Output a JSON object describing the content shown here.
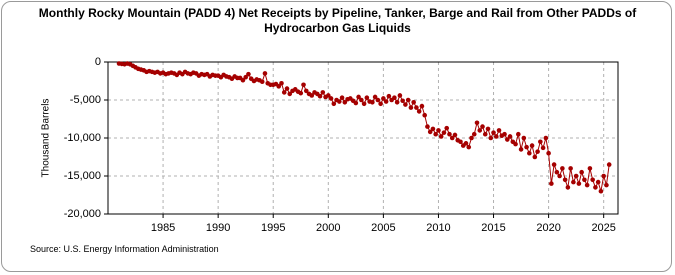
{
  "chart_data": {
    "type": "line",
    "title": "Monthly Rocky Mountain (PADD 4) Net Receipts by Pipeline, Tanker, Barge and Rail from Other PADDs of Hydrocarbon Gas Liquids",
    "y_label": "Thousand Barrels",
    "source": "Source: U.S. Energy Information Administration",
    "xlim": [
      1980,
      2026.3
    ],
    "xticks": [
      1985,
      1990,
      1995,
      2000,
      2005,
      2010,
      2015,
      2020,
      2025
    ],
    "ylim": [
      -20000,
      0
    ],
    "yticks": [
      {
        "value": -20000,
        "label": "-20,000"
      },
      {
        "value": -15000,
        "label": "-15,000"
      },
      {
        "value": -10000,
        "label": "-10,000"
      },
      {
        "value": -5000,
        "label": "-5,000"
      },
      0
    ],
    "grid": true,
    "series": [
      {
        "name": "Net Receipts",
        "color": "#a50000",
        "x": [
          1981,
          1981.25,
          1981.5,
          1981.75,
          1982,
          1982.25,
          1982.5,
          1982.75,
          1983,
          1983.25,
          1983.5,
          1983.75,
          1984,
          1984.25,
          1984.5,
          1984.75,
          1985,
          1985.25,
          1985.5,
          1985.75,
          1986,
          1986.25,
          1986.5,
          1986.75,
          1987,
          1987.25,
          1987.5,
          1987.75,
          1988,
          1988.25,
          1988.5,
          1988.75,
          1989,
          1989.25,
          1989.5,
          1989.75,
          1990,
          1990.25,
          1990.5,
          1990.75,
          1991,
          1991.25,
          1991.5,
          1991.75,
          1992,
          1992.25,
          1992.5,
          1992.75,
          1993,
          1993.25,
          1993.5,
          1993.75,
          1994,
          1994.25,
          1994.5,
          1994.75,
          1995,
          1995.25,
          1995.5,
          1995.75,
          1996,
          1996.25,
          1996.5,
          1996.75,
          1997,
          1997.25,
          1997.5,
          1997.75,
          1998,
          1998.25,
          1998.5,
          1998.75,
          1999,
          1999.25,
          1999.5,
          1999.75,
          2000,
          2000.25,
          2000.5,
          2000.75,
          2001,
          2001.25,
          2001.5,
          2001.75,
          2002,
          2002.25,
          2002.5,
          2002.75,
          2003,
          2003.25,
          2003.5,
          2003.75,
          2004,
          2004.25,
          2004.5,
          2004.75,
          2005,
          2005.25,
          2005.5,
          2005.75,
          2006,
          2006.25,
          2006.5,
          2006.75,
          2007,
          2007.25,
          2007.5,
          2007.75,
          2008,
          2008.25,
          2008.5,
          2008.75,
          2009,
          2009.25,
          2009.5,
          2009.75,
          2010,
          2010.25,
          2010.5,
          2010.75,
          2011,
          2011.25,
          2011.5,
          2011.75,
          2012,
          2012.25,
          2012.5,
          2012.75,
          2013,
          2013.25,
          2013.5,
          2013.75,
          2014,
          2014.25,
          2014.5,
          2014.75,
          2015,
          2015.25,
          2015.5,
          2015.75,
          2016,
          2016.25,
          2016.5,
          2016.75,
          2017,
          2017.25,
          2017.5,
          2017.75,
          2018,
          2018.25,
          2018.5,
          2018.75,
          2019,
          2019.25,
          2019.5,
          2019.75,
          2020,
          2020.25,
          2020.5,
          2020.75,
          2021,
          2021.25,
          2021.5,
          2021.75,
          2022,
          2022.25,
          2022.5,
          2022.75,
          2023,
          2023.25,
          2023.5,
          2023.75,
          2024,
          2024.25,
          2024.5,
          2024.75,
          2025,
          2025.25,
          2025.5
        ],
        "values": [
          -200,
          -250,
          -300,
          -200,
          -300,
          -500,
          -700,
          -900,
          -1000,
          -1100,
          -1300,
          -1200,
          -1300,
          -1400,
          -1300,
          -1500,
          -1400,
          -1600,
          -1500,
          -1400,
          -1500,
          -1700,
          -1400,
          -1600,
          -1300,
          -1500,
          -1600,
          -1400,
          -1500,
          -1800,
          -1600,
          -1700,
          -1600,
          -1900,
          -1700,
          -1800,
          -1800,
          -2000,
          -1700,
          -1900,
          -2000,
          -2200,
          -1900,
          -2100,
          -2100,
          -2400,
          -2000,
          -1600,
          -2200,
          -2500,
          -2300,
          -2400,
          -2600,
          -1500,
          -2800,
          -3000,
          -3000,
          -2900,
          -3200,
          -2800,
          -4000,
          -3500,
          -4200,
          -3800,
          -3600,
          -3900,
          -4100,
          -3000,
          -3800,
          -4200,
          -4400,
          -4000,
          -4200,
          -4500,
          -4000,
          -4600,
          -4400,
          -4800,
          -5500,
          -5000,
          -5200,
          -4700,
          -5300,
          -4900,
          -4800,
          -5100,
          -5400,
          -4600,
          -5000,
          -5500,
          -4700,
          -5200,
          -5300,
          -4600,
          -5000,
          -5500,
          -4800,
          -5200,
          -4500,
          -5000,
          -4700,
          -5300,
          -4400,
          -5100,
          -5600,
          -5000,
          -6000,
          -5300,
          -6000,
          -6500,
          -5800,
          -7000,
          -8500,
          -9200,
          -8800,
          -9500,
          -9000,
          -9800,
          -9300,
          -8700,
          -9500,
          -10000,
          -9600,
          -10300,
          -10500,
          -11000,
          -10700,
          -11200,
          -10000,
          -9500,
          -8000,
          -9000,
          -8500,
          -9500,
          -8800,
          -10000,
          -9300,
          -9800,
          -9000,
          -9700,
          -9500,
          -10200,
          -9800,
          -10500,
          -10800,
          -9500,
          -11500,
          -10000,
          -11200,
          -12000,
          -11000,
          -12500,
          -11800,
          -10500,
          -11300,
          -10000,
          -12000,
          -16000,
          -13500,
          -14500,
          -15000,
          -14000,
          -15500,
          -16500,
          -14000,
          -15800,
          -15000,
          -16000,
          -14500,
          -15500,
          -16200,
          -14000,
          -15500,
          -16500,
          -15800,
          -17000,
          -15000,
          -16200,
          -13500
        ]
      }
    ]
  }
}
